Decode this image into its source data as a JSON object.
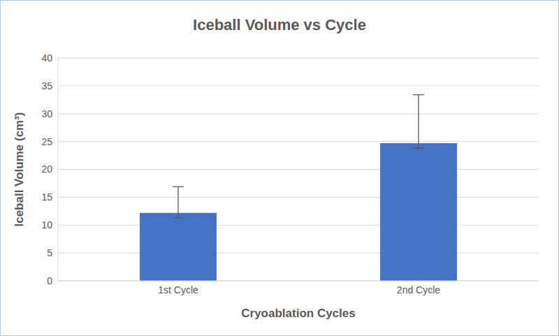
{
  "chart_data": {
    "type": "bar",
    "title": "Iceball Volume vs Cycle",
    "x_label": "Cryoablation Cycles",
    "y_label": "Iceball Volume (cm³)",
    "categories": [
      "1st Cycle",
      "2nd Cycle"
    ],
    "values": [
      12.2,
      24.7
    ],
    "error_minus": [
      0.9,
      0.9
    ],
    "error_plus": [
      4.7,
      8.7
    ],
    "color": "#4472c4",
    "ylim": [
      0,
      40
    ],
    "yticks": [
      0,
      5,
      10,
      15,
      20,
      25,
      30,
      35,
      40
    ],
    "grid": true
  }
}
